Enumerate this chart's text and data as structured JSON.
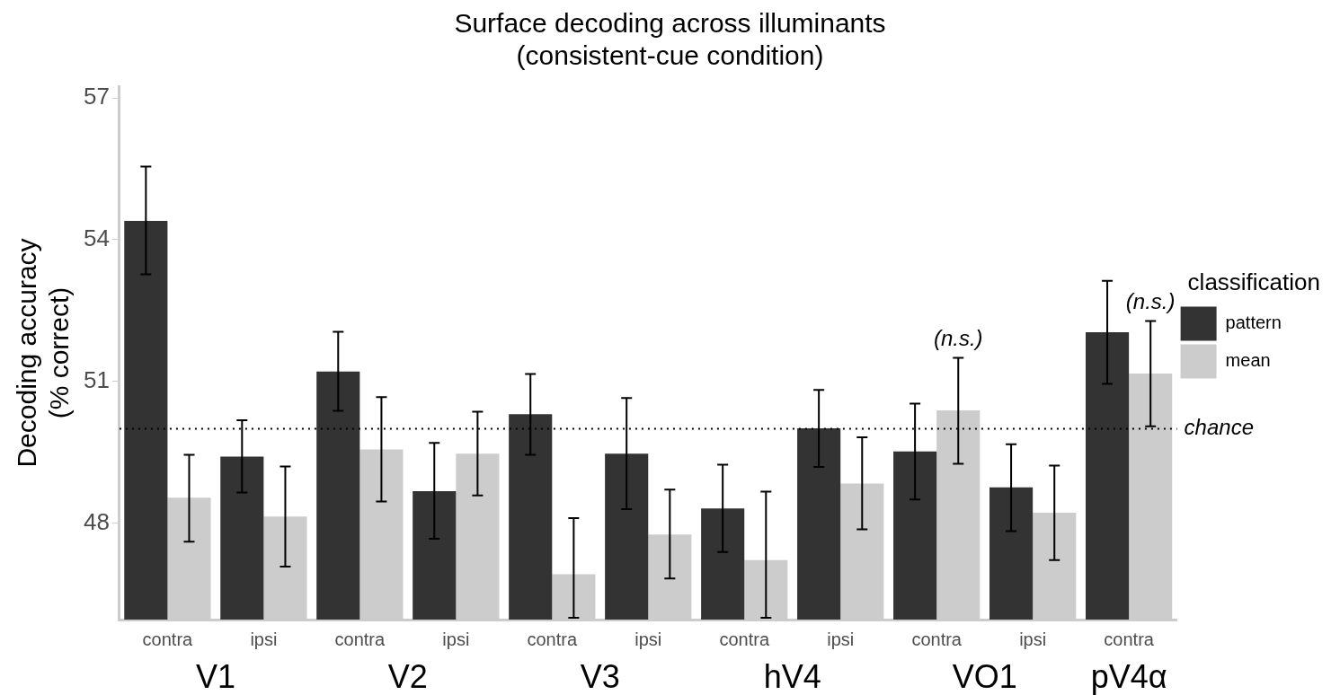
{
  "chart_data": {
    "type": "bar",
    "title": "Surface decoding across illuminants\n(consistent-cue condition)",
    "ylabel": "Decoding accuracy\n(% correct)",
    "legend_title": "classification",
    "categories": [
      "contra",
      "ipsi",
      "contra",
      "ipsi",
      "contra",
      "ipsi",
      "contra",
      "ipsi",
      "contra",
      "ipsi",
      "contra"
    ],
    "series": [
      {
        "name": "pattern",
        "color": "#333333",
        "values": [
          54.4,
          49.41,
          51.21,
          48.68,
          50.31,
          49.47,
          48.31,
          50.01,
          49.52,
          48.76,
          52.04
        ],
        "errors": [
          [
            53.27,
            55.55
          ],
          [
            48.65,
            50.18
          ],
          [
            50.38,
            52.05
          ],
          [
            47.67,
            49.7
          ],
          [
            49.45,
            51.16
          ],
          [
            48.3,
            50.65
          ],
          [
            47.39,
            49.24
          ],
          [
            49.19,
            50.82
          ],
          [
            48.5,
            50.53
          ],
          [
            47.83,
            49.67
          ],
          [
            50.95,
            53.13
          ]
        ]
      },
      {
        "name": "mean",
        "color": "#cccccc",
        "values": [
          48.54,
          48.14,
          49.56,
          49.47,
          46.92,
          47.76,
          47.22,
          48.84,
          50.39,
          48.22,
          51.17
        ],
        "value_labels": [
          null,
          null,
          null,
          null,
          null,
          null,
          null,
          null,
          "(n.s.)",
          null,
          "(n.s.)"
        ],
        "errors": [
          [
            47.61,
            49.45
          ],
          [
            47.08,
            49.2
          ],
          [
            48.46,
            50.67
          ],
          [
            48.59,
            50.36
          ],
          [
            46.0,
            48.11
          ],
          [
            46.83,
            48.71
          ],
          [
            46.0,
            48.67
          ],
          [
            47.87,
            49.82
          ],
          [
            49.26,
            51.5
          ],
          [
            47.22,
            49.22
          ],
          [
            50.05,
            52.28
          ]
        ]
      }
    ],
    "ylim": [
      45.96,
      57.25
    ],
    "yticks": [
      48,
      51,
      54,
      57
    ],
    "grid": false,
    "legend": "right",
    "ref_lines": [
      {
        "axis": "y",
        "value": 50,
        "label": "chance",
        "line_style": "dotted",
        "color": "#000000"
      }
    ],
    "annotations": [
      "V1",
      "V2",
      "V3",
      "hV4",
      "VO1",
      "pV4α"
    ]
  }
}
